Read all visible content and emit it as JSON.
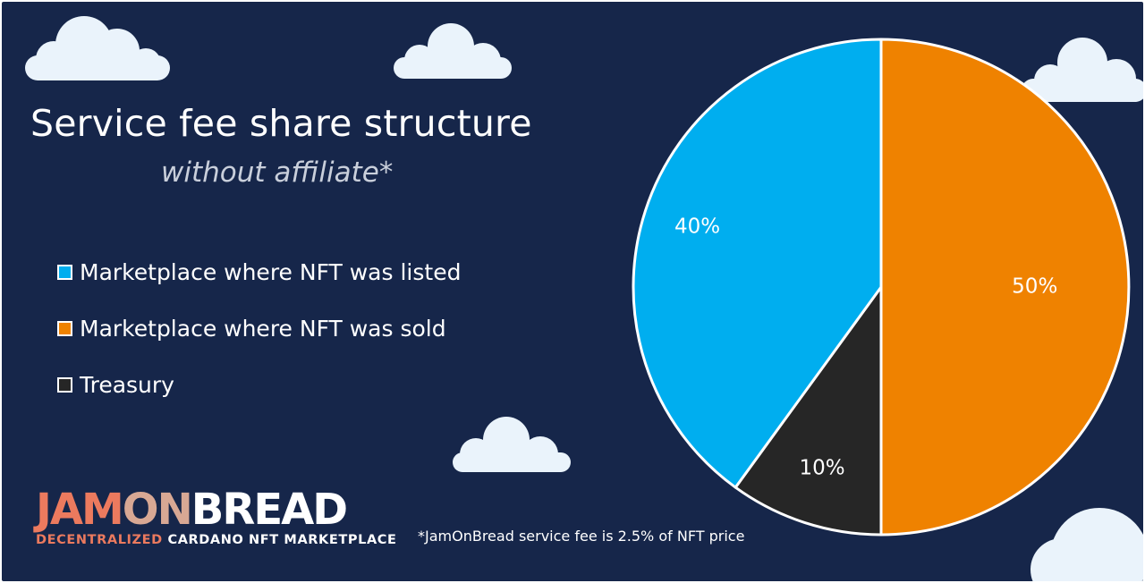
{
  "title": "Service fee share structure",
  "subtitle": "without affiliate*",
  "chart_data": {
    "type": "pie",
    "title": "Service fee share structure",
    "subtitle": "without affiliate*",
    "series": [
      {
        "name": "Marketplace where NFT was sold",
        "value": 50,
        "label": "50%",
        "color": "#ef8200"
      },
      {
        "name": "Treasury",
        "value": 10,
        "label": "10%",
        "color": "#262626"
      },
      {
        "name": "Marketplace where NFT was listed",
        "value": 40,
        "label": "40%",
        "color": "#00aeef"
      }
    ],
    "legend_order": [
      "Marketplace where NFT was listed",
      "Marketplace where NFT was sold",
      "Treasury"
    ],
    "legend_position": "left",
    "slice_border_color": "#ffffff",
    "label_color": "#ffffff"
  },
  "legend": [
    {
      "label": "Marketplace where NFT was listed",
      "color": "#00aeef"
    },
    {
      "label": "Marketplace where NFT was sold",
      "color": "#ef8200"
    },
    {
      "label": "Treasury",
      "color": "#262626"
    }
  ],
  "brand": {
    "part1": "JAM",
    "part2": "ON",
    "part3": "BREAD",
    "tagline_part1": "DECENTRALIZED",
    "tagline_part2": "CARDANO NFT MARKETPLACE"
  },
  "footnote": "*JamOnBread service fee is 2.5% of NFT price",
  "colors": {
    "background": "#16264a",
    "cloud": "#eaf3fb",
    "brand_accent": "#ec7a5e"
  }
}
